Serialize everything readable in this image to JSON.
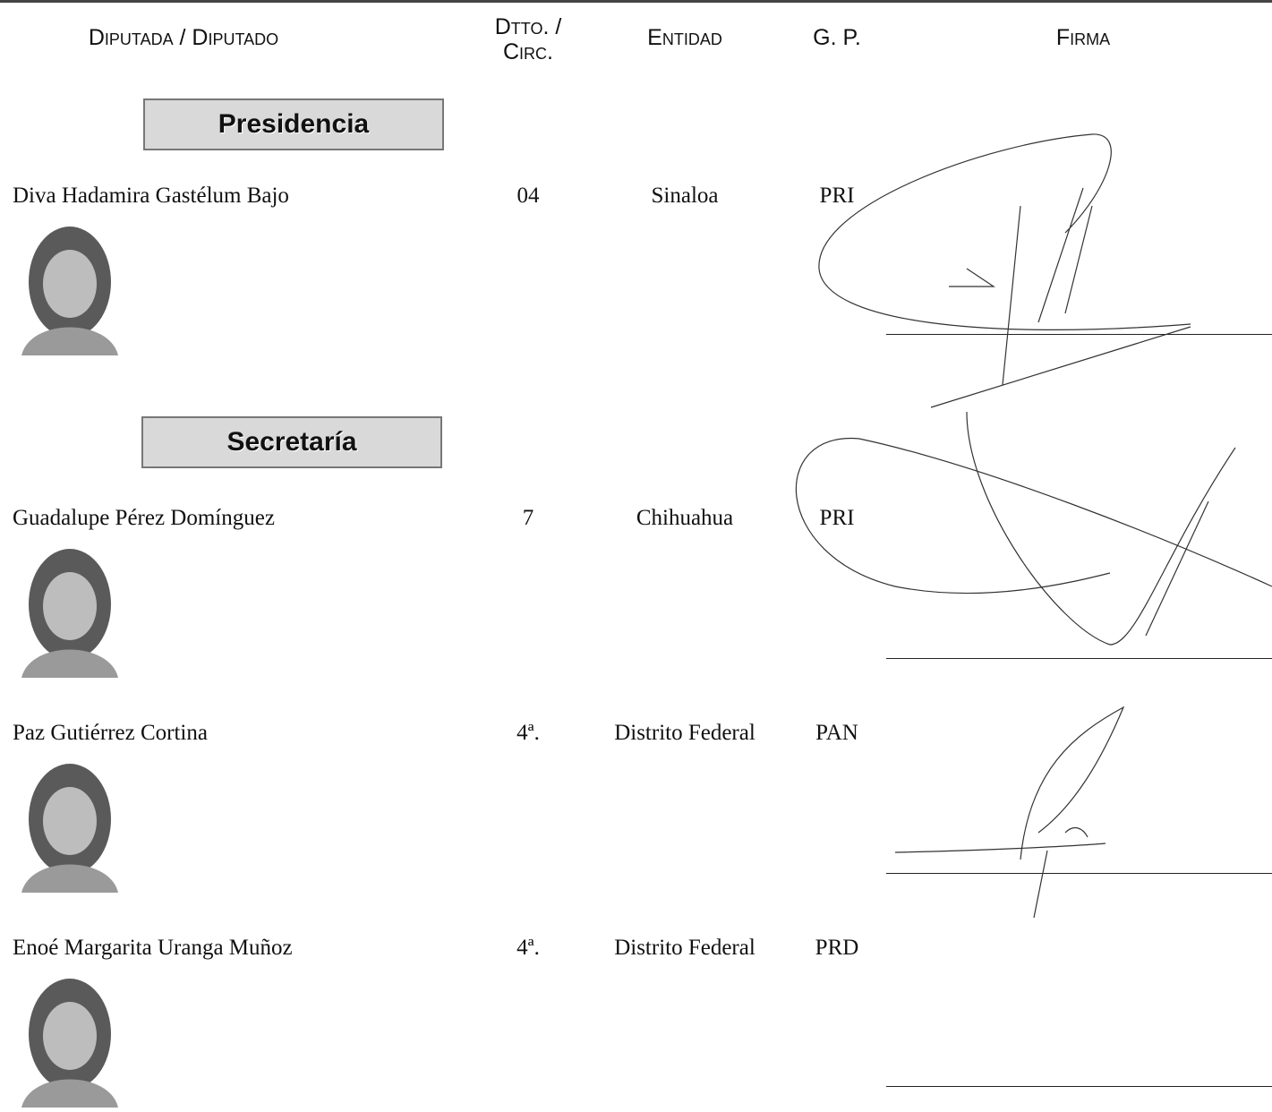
{
  "header": {
    "columns": [
      "Diputada / Diputado",
      "Dtto. / Circ.",
      "Entidad",
      "G. P.",
      "Firma"
    ]
  },
  "sections": [
    {
      "title": "Presidencia",
      "members": [
        {
          "name": "Diva Hadamira Gastélum Bajo",
          "district": "04",
          "entity": "Sinaloa",
          "party": "PRI"
        }
      ]
    },
    {
      "title": "Secretaría",
      "members": [
        {
          "name": "Guadalupe Pérez Domínguez",
          "district": "7",
          "entity": "Chihuahua",
          "party": "PRI"
        },
        {
          "name": "Paz Gutiérrez Cortina",
          "district": "4ª.",
          "entity": "Distrito Federal",
          "party": "PAN"
        },
        {
          "name": "Enoé Margarita Uranga Muñoz",
          "district": "4ª.",
          "entity": "Distrito Federal",
          "party": "PRD"
        }
      ]
    }
  ]
}
